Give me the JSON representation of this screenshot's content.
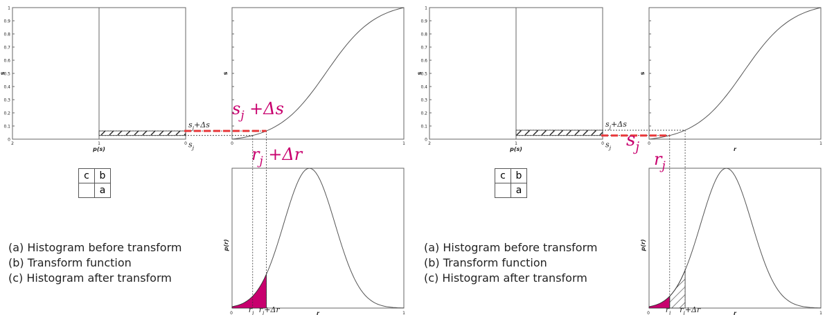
{
  "panels": [
    {
      "axis_labels": {
        "hist_s": "p(s)",
        "s": "s",
        "r": "r",
        "pr": "p(r)"
      },
      "ticks_y": [
        "0",
        "0.1",
        "0.2",
        "0.3",
        "0.4",
        "0.5",
        "0.6",
        "0.7",
        "0.8",
        "0.9",
        "1"
      ],
      "ticks_hist_x": [
        "2",
        "1",
        "0"
      ],
      "ticks_01": [
        "0",
        "1"
      ],
      "sj_plus_ds_small": "s_j+Δs",
      "sj_small": "s_j",
      "sj_plus_ds_big": "s_j +Δs",
      "rj_plus_dr_big": "r_j +Δr",
      "rj_small": "r_j",
      "rj_plus_dr_small": "r_j+Δr",
      "legend_table": {
        "c": "c",
        "b": "b",
        "a": "a"
      },
      "captions": [
        "(a) Histogram before transform",
        "(b) Transform function",
        "(c) Histogram after transform"
      ]
    },
    {
      "axis_labels": {
        "hist_s": "p(s)",
        "s": "s",
        "r": "r",
        "pr": "p(r)"
      },
      "ticks_y": [
        "0",
        "0.1",
        "0.2",
        "0.3",
        "0.4",
        "0.5",
        "0.6",
        "0.7",
        "0.8",
        "0.9",
        "1"
      ],
      "ticks_hist_x": [
        "2",
        "1",
        "0"
      ],
      "ticks_01": [
        "0",
        "1"
      ],
      "sj_plus_ds_small": "s_j+Δs",
      "sj_small": "s_j",
      "sj_big": "s_j",
      "rj_big": "r_j",
      "ri_small": "r_i",
      "rj_plus_dr_small": "r_j+Δr",
      "legend_table": {
        "c": "c",
        "b": "b",
        "a": "a"
      },
      "captions": [
        "(a) Histogram before transform",
        "(b) Transform function",
        "(c) Histogram after transform"
      ]
    }
  ],
  "colors": {
    "accent": "#c8006e",
    "dash": "#e8383a",
    "line": "#555555"
  }
}
